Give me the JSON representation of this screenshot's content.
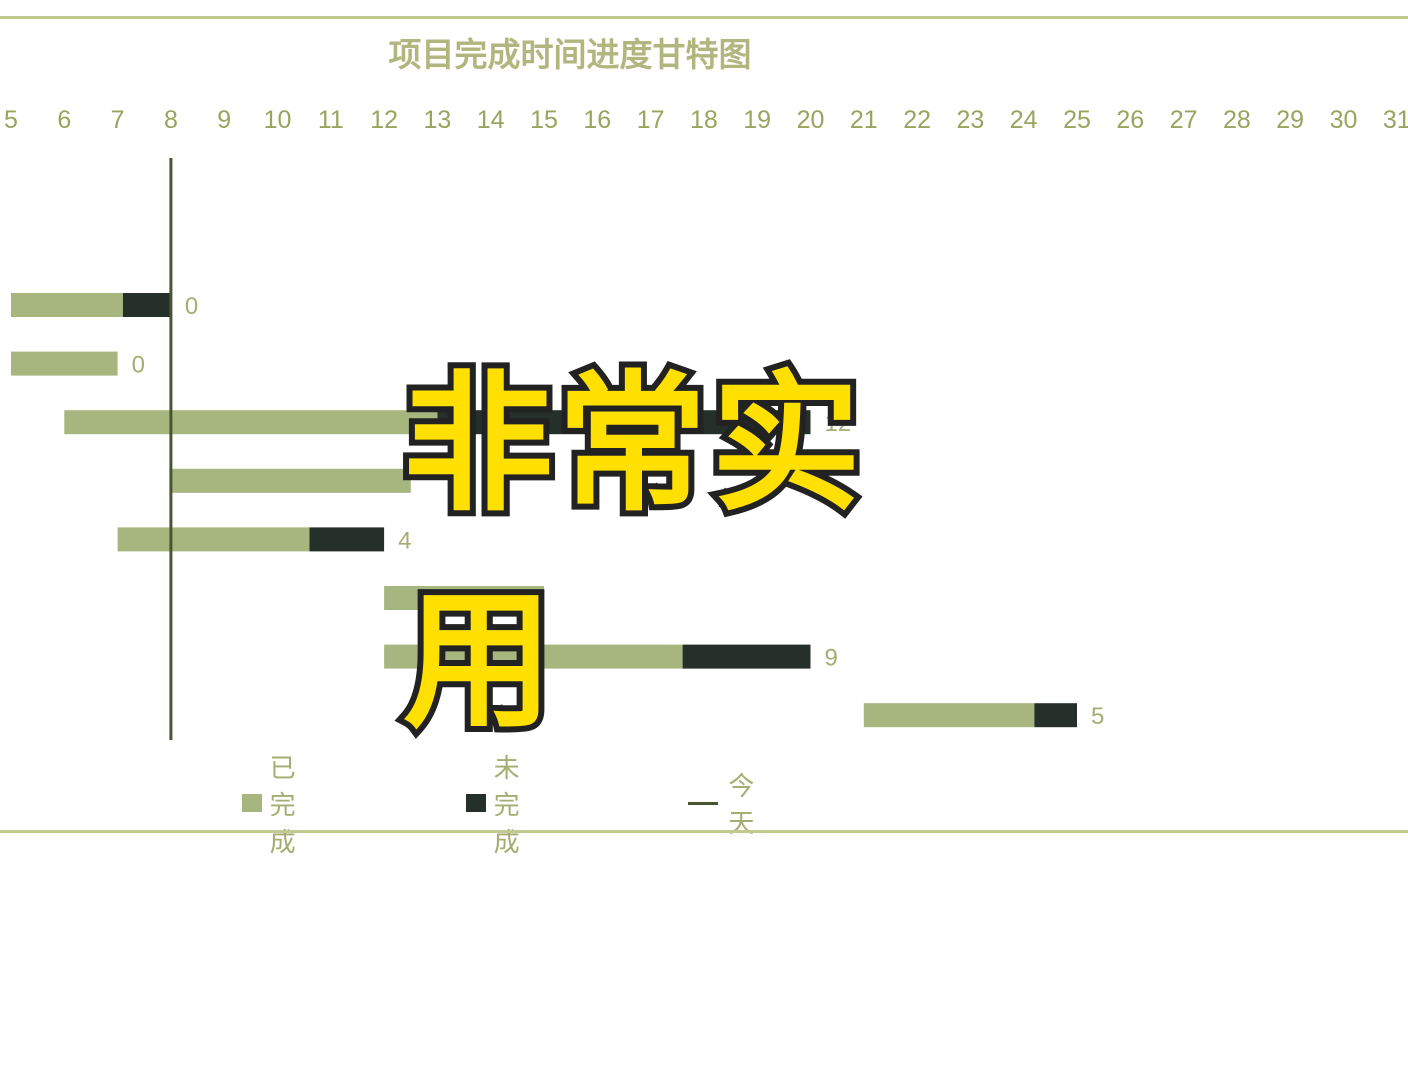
{
  "colors": {
    "rule": "#c2c98e",
    "done": "#a6b67e",
    "remaining": "#26302a",
    "today_line": "#495430",
    "tick_text": "#9aa45e",
    "label_text": "#a6ad72",
    "title": "#b1b67f",
    "overlay_fill": "#ffe000",
    "overlay_stroke": "#222222"
  },
  "overlay": {
    "text": "非常实用"
  },
  "chart_data": {
    "type": "bar",
    "subtype": "gantt",
    "title": "项目完成时间进度甘特图",
    "xlim": [
      5,
      31
    ],
    "x_ticks": [
      "5",
      "6",
      "7",
      "8",
      "9",
      "10",
      "11",
      "12",
      "13",
      "14",
      "15",
      "16",
      "17",
      "18",
      "19",
      "20",
      "21",
      "22",
      "23",
      "24",
      "25",
      "26",
      "27",
      "28",
      "29",
      "30",
      "31"
    ],
    "axis_position": "top",
    "grid": false,
    "legend": {
      "position": "bottom",
      "entries": [
        "已完成",
        "未完成",
        "今天"
      ]
    },
    "today": 8,
    "tasks": [
      {
        "start": 5,
        "done": 2.1,
        "remaining": 0.9,
        "label": "0"
      },
      {
        "start": 5,
        "done": 2,
        "remaining": 0,
        "label": "0"
      },
      {
        "start": 6,
        "done": 7,
        "remaining": 7,
        "label": "12"
      },
      {
        "start": 8,
        "done": 4.5,
        "remaining": 0,
        "label": ""
      },
      {
        "start": 7,
        "done": 3.6,
        "remaining": 1.4,
        "label": "4"
      },
      {
        "start": 12,
        "done": 3,
        "remaining": 0,
        "label": ""
      },
      {
        "start": 12,
        "done": 5.6,
        "remaining": 2.4,
        "label": "9"
      },
      {
        "start": 21,
        "done": 3.2,
        "remaining": 0.8,
        "label": "5"
      }
    ]
  }
}
